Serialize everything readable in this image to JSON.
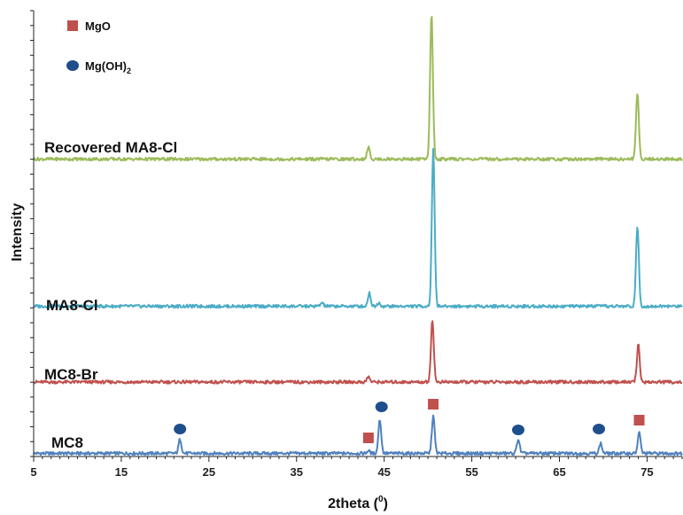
{
  "chart_data": {
    "type": "line",
    "xlabel": "2theta (⁰)",
    "xlabel_main": "2theta (",
    "xlabel_sup": "0",
    "xlabel_close": ")",
    "ylabel": "Intensity",
    "xlim": [
      5,
      79
    ],
    "xticks": [
      5,
      15,
      25,
      35,
      45,
      55,
      65,
      75
    ],
    "yticks_shown": false,
    "grid": false,
    "legend_position": "top-left",
    "legend": [
      {
        "name": "MgO",
        "marker": "square",
        "color": "#c0504d"
      },
      {
        "name": "Mg(OH)",
        "subscript": "2",
        "marker": "circle",
        "color": "#1f4e8c"
      }
    ],
    "series": [
      {
        "name": "MC8",
        "color": "#4f81bd",
        "offset": 0,
        "peaks": [
          {
            "x": 21.7,
            "h": 1.6
          },
          {
            "x": 43.2,
            "h": 0.3
          },
          {
            "x": 44.5,
            "h": 3.8
          },
          {
            "x": 50.6,
            "h": 4.2
          },
          {
            "x": 60.3,
            "h": 1.6
          },
          {
            "x": 69.7,
            "h": 1.1
          },
          {
            "x": 74.1,
            "h": 2.3
          }
        ],
        "markers": [
          {
            "x": 21.7,
            "type": "Mg(OH)2"
          },
          {
            "x": 43.2,
            "type": "MgO"
          },
          {
            "x": 44.7,
            "type": "Mg(OH)2"
          },
          {
            "x": 50.6,
            "type": "MgO"
          },
          {
            "x": 60.3,
            "type": "Mg(OH)2"
          },
          {
            "x": 69.5,
            "type": "Mg(OH)2"
          },
          {
            "x": 74.1,
            "type": "MgO"
          }
        ]
      },
      {
        "name": "MC8-Br",
        "color": "#c0504d",
        "offset": 8,
        "peaks": [
          {
            "x": 43.2,
            "h": 0.6
          },
          {
            "x": 50.5,
            "h": 7.0
          },
          {
            "x": 74.0,
            "h": 4.2
          }
        ]
      },
      {
        "name": "MA8-Cl",
        "color": "#4bacc6",
        "offset": 16.5,
        "peaks": [
          {
            "x": 37.9,
            "h": 0.4
          },
          {
            "x": 43.3,
            "h": 1.5
          },
          {
            "x": 44.4,
            "h": 0.4
          },
          {
            "x": 50.6,
            "h": 17.5
          },
          {
            "x": 73.9,
            "h": 9.0
          }
        ]
      },
      {
        "name": "Recovered MA8-Cl",
        "color": "#9bbb59",
        "offset": 33,
        "peaks": [
          {
            "x": 43.2,
            "h": 1.3
          },
          {
            "x": 50.4,
            "h": 16.3
          },
          {
            "x": 73.9,
            "h": 7.5
          }
        ]
      }
    ]
  }
}
